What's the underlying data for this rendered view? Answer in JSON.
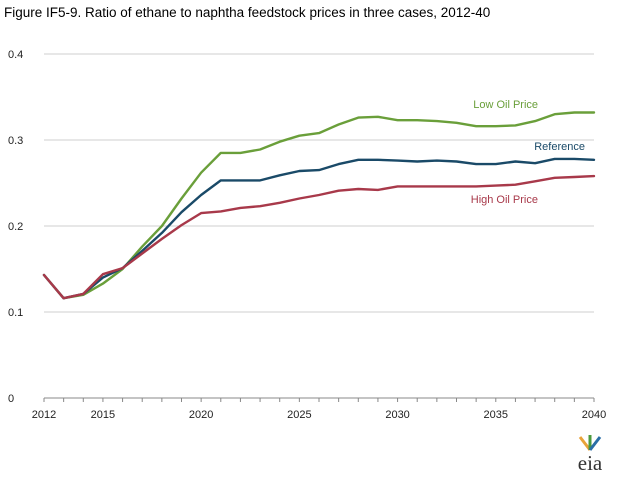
{
  "title": "Figure IF5-9. Ratio of ethane to naphtha  feedstock prices in three cases, 2012-40",
  "logo_text": "eia",
  "colors": {
    "low_oil": "#6a9f3a",
    "reference": "#1a4a68",
    "high_oil": "#a8394a",
    "grid": "#cfcfcf",
    "axis": "#888888",
    "logo_orange": "#e8a33a",
    "logo_green": "#4c9a3c",
    "logo_blue": "#2a6ea6"
  },
  "chart_data": {
    "type": "line",
    "title": "Figure IF5-9. Ratio of ethane to naphtha  feedstock prices in three cases, 2012-40",
    "xlabel": "",
    "ylabel": "",
    "xlim": [
      2012,
      2040
    ],
    "ylim": [
      0,
      0.4
    ],
    "xticks": [
      "2012",
      "2015",
      "2020",
      "2025",
      "2030",
      "2035",
      "2040"
    ],
    "yticks": [
      "0",
      "0.1",
      "0.2",
      "0.3",
      "0.4"
    ],
    "grid": true,
    "x": [
      2012,
      2013,
      2014,
      2015,
      2016,
      2017,
      2018,
      2019,
      2020,
      2021,
      2022,
      2023,
      2024,
      2025,
      2026,
      2027,
      2028,
      2029,
      2030,
      2031,
      2032,
      2033,
      2034,
      2035,
      2036,
      2037,
      2038,
      2039,
      2040
    ],
    "series": [
      {
        "name": "Low Oil Price",
        "color_key": "low_oil",
        "values": [
          0.143,
          0.116,
          0.12,
          0.133,
          0.15,
          0.176,
          0.2,
          0.232,
          0.262,
          0.285,
          0.285,
          0.289,
          0.298,
          0.305,
          0.308,
          0.318,
          0.326,
          0.327,
          0.323,
          0.323,
          0.322,
          0.32,
          0.316,
          0.316,
          0.317,
          0.322,
          0.33,
          0.332,
          0.332
        ]
      },
      {
        "name": "Reference",
        "color_key": "reference",
        "values": [
          0.143,
          0.116,
          0.121,
          0.14,
          0.151,
          0.171,
          0.192,
          0.216,
          0.236,
          0.253,
          0.253,
          0.253,
          0.259,
          0.264,
          0.265,
          0.272,
          0.277,
          0.277,
          0.276,
          0.275,
          0.276,
          0.275,
          0.272,
          0.272,
          0.275,
          0.273,
          0.278,
          0.278,
          0.277
        ]
      },
      {
        "name": "High Oil Price",
        "color_key": "high_oil",
        "values": [
          0.143,
          0.116,
          0.121,
          0.144,
          0.151,
          0.168,
          0.185,
          0.201,
          0.215,
          0.217,
          0.221,
          0.223,
          0.227,
          0.232,
          0.236,
          0.241,
          0.243,
          0.242,
          0.246,
          0.246,
          0.246,
          0.246,
          0.246,
          0.247,
          0.248,
          0.252,
          0.256,
          0.257,
          0.258
        ]
      }
    ]
  }
}
